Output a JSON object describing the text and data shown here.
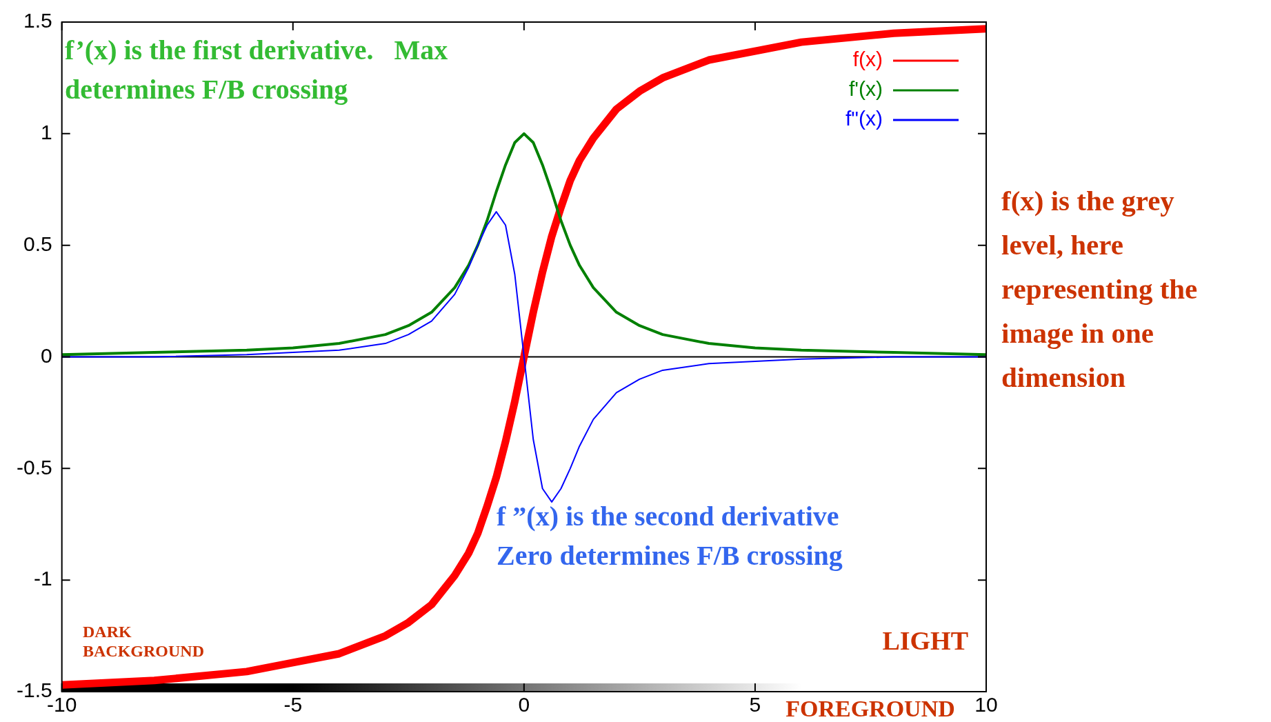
{
  "chart_data": {
    "type": "line",
    "x": [
      -10,
      -8,
      -6,
      -5,
      -4,
      -3,
      -2.5,
      -2,
      -1.5,
      -1.2,
      -1,
      -0.8,
      -0.6,
      -0.4,
      -0.2,
      0,
      0.2,
      0.4,
      0.6,
      0.8,
      1,
      1.2,
      1.5,
      2,
      2.5,
      3,
      4,
      5,
      6,
      8,
      10
    ],
    "series": [
      {
        "name": "f(x)",
        "color": "#ff0000",
        "values": [
          -1.47,
          -1.45,
          -1.41,
          -1.37,
          -1.33,
          -1.25,
          -1.19,
          -1.11,
          -0.98,
          -0.88,
          -0.79,
          -0.67,
          -0.54,
          -0.38,
          -0.2,
          0,
          0.2,
          0.38,
          0.54,
          0.67,
          0.79,
          0.88,
          0.98,
          1.11,
          1.19,
          1.25,
          1.33,
          1.37,
          1.41,
          1.45,
          1.47
        ]
      },
      {
        "name": "f'(x)",
        "color": "#008000",
        "values": [
          0.01,
          0.02,
          0.03,
          0.04,
          0.06,
          0.1,
          0.14,
          0.2,
          0.31,
          0.41,
          0.5,
          0.61,
          0.74,
          0.86,
          0.96,
          1,
          0.96,
          0.86,
          0.74,
          0.61,
          0.5,
          0.41,
          0.31,
          0.2,
          0.14,
          0.1,
          0.06,
          0.04,
          0.03,
          0.02,
          0.01
        ]
      },
      {
        "name": "f\"(x)",
        "color": "#0000ff",
        "values": [
          0,
          0,
          0.01,
          0.02,
          0.03,
          0.06,
          0.1,
          0.16,
          0.28,
          0.4,
          0.5,
          0.59,
          0.65,
          0.59,
          0.37,
          0,
          -0.37,
          -0.59,
          -0.65,
          -0.59,
          -0.5,
          -0.4,
          -0.28,
          -0.16,
          -0.1,
          -0.06,
          -0.03,
          -0.02,
          -0.01,
          0,
          0
        ]
      }
    ],
    "xlim": [
      -10,
      10
    ],
    "xticks": [
      -10,
      -5,
      0,
      5,
      10
    ],
    "ylim": [
      -1.5,
      1.5
    ],
    "yticks": [
      -1.5,
      -1,
      -0.5,
      0,
      0.5,
      1,
      1.5
    ],
    "ref_lines": [
      {
        "axis": "y",
        "value": 0,
        "color": "#000000"
      }
    ],
    "legend": "top right",
    "marker": "none",
    "line_style": "solid",
    "annotations": [
      "f’(x) is the first derivative.   Max\ndetermines F/B crossing",
      "f ”(x) is the second derivative\nZero determines F/B crossing",
      "f(x) is the grey\nlevel, here\nrepresenting the\nimage in one\ndimension",
      "DARK",
      "BACKGROUND",
      "LIGHT",
      "FOREGROUND"
    ]
  }
}
